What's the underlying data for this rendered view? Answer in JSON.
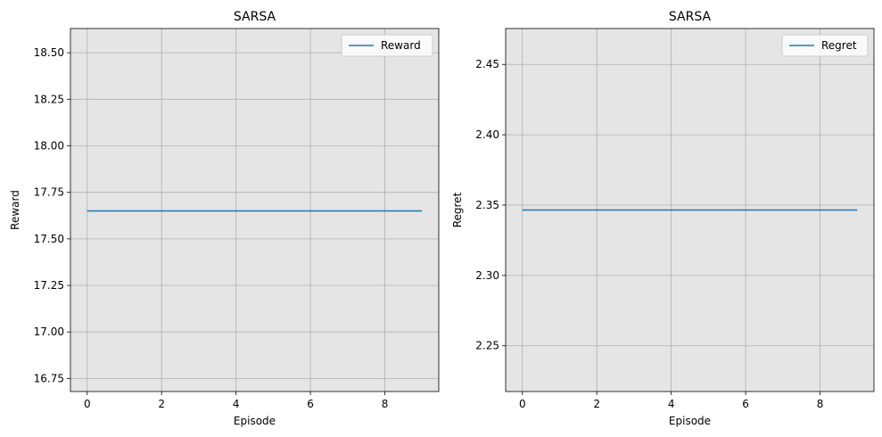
{
  "colors": {
    "plot_bg": "#e5e5e5",
    "grid": "#b0b0b0",
    "line": "#1f77b4",
    "legend_bg": "#ffffff",
    "legend_border": "#cccccc"
  },
  "chart_data": [
    {
      "type": "line",
      "title": "SARSA",
      "xlabel": "Episode",
      "ylabel": "Reward",
      "xlim": [
        -0.45,
        9.45
      ],
      "ylim": [
        16.68,
        18.63
      ],
      "xticks": [
        0,
        2,
        4,
        6,
        8
      ],
      "xtick_labels": [
        "0",
        "2",
        "4",
        "6",
        "8"
      ],
      "yticks": [
        16.75,
        17.0,
        17.25,
        17.5,
        17.75,
        18.0,
        18.25,
        18.5
      ],
      "ytick_labels": [
        "16.75",
        "17.00",
        "17.25",
        "17.50",
        "17.75",
        "18.00",
        "18.25",
        "18.50"
      ],
      "grid": true,
      "legend_position": "top-right",
      "series": [
        {
          "name": "Reward",
          "x": [
            0,
            1,
            2,
            3,
            4,
            5,
            6,
            7,
            8,
            9
          ],
          "y": [
            17.65,
            17.65,
            17.65,
            17.65,
            17.65,
            17.65,
            17.65,
            17.65,
            17.65,
            17.65
          ]
        }
      ]
    },
    {
      "type": "line",
      "title": "SARSA",
      "xlabel": "Episode",
      "ylabel": "Regret",
      "xlim": [
        -0.45,
        9.45
      ],
      "ylim": [
        2.2175,
        2.4755
      ],
      "xticks": [
        0,
        2,
        4,
        6,
        8
      ],
      "xtick_labels": [
        "0",
        "2",
        "4",
        "6",
        "8"
      ],
      "yticks": [
        2.25,
        2.3,
        2.35,
        2.4,
        2.45
      ],
      "ytick_labels": [
        "2.25",
        "2.30",
        "2.35",
        "2.40",
        "2.45"
      ],
      "grid": true,
      "legend_position": "top-right",
      "series": [
        {
          "name": "Regret",
          "x": [
            0,
            1,
            2,
            3,
            4,
            5,
            6,
            7,
            8,
            9
          ],
          "y": [
            2.3465,
            2.3465,
            2.3465,
            2.3465,
            2.3465,
            2.3465,
            2.3465,
            2.3465,
            2.3465,
            2.3465
          ]
        }
      ]
    }
  ]
}
